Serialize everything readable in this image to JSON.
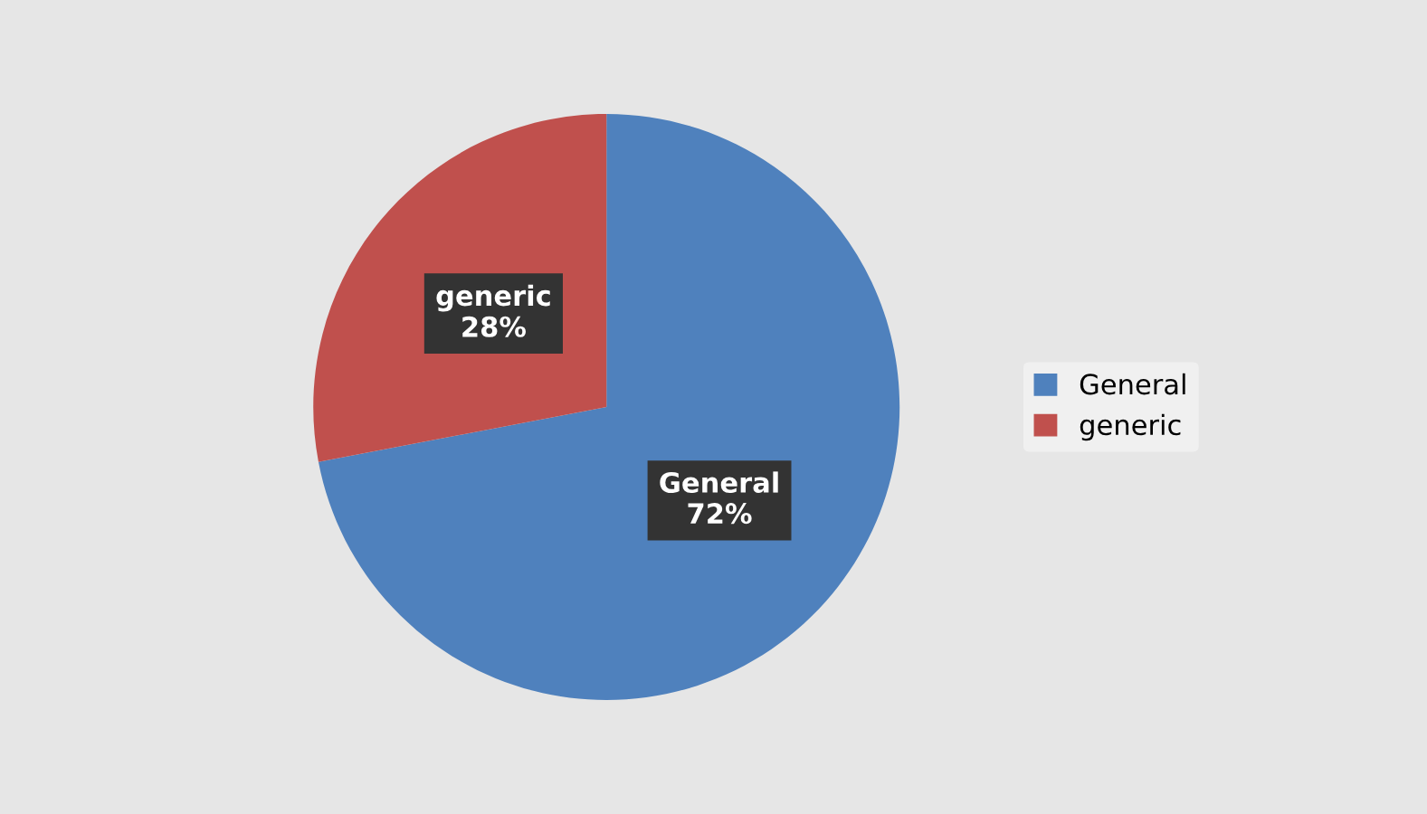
{
  "chart_data": {
    "type": "pie",
    "categories": [
      "General",
      "generic"
    ],
    "values": [
      72,
      28
    ],
    "colors": [
      "#4f81bd",
      "#c0504d"
    ],
    "value_labels": [
      "72%",
      "28%"
    ],
    "legend": "right"
  }
}
